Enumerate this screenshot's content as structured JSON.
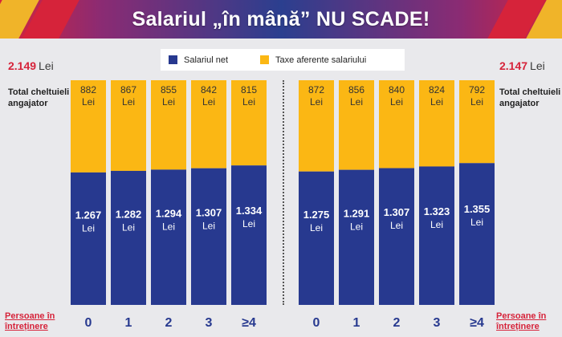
{
  "header": {
    "title": "Salariul „în mână” NU SCADE!"
  },
  "legend": {
    "net_label": "Salariul net",
    "taxes_label": "Taxe aferente salariului"
  },
  "colors": {
    "net": "#27398f",
    "taxes": "#fbb714",
    "accent": "#d6233a"
  },
  "left_panel": {
    "total_amount": "2.149",
    "total_unit": "Lei",
    "total_label": "Total cheltuieli angajator",
    "persons_label": "Persoane în întreținere"
  },
  "right_panel": {
    "total_amount": "2.147",
    "total_unit": "Lei",
    "total_label": "Total cheltuieli angajator",
    "persons_label": "Persoane în întreținere"
  },
  "chart_data": [
    {
      "type": "bar",
      "stacked": true,
      "categories": [
        "0",
        "1",
        "2",
        "3",
        "≥4"
      ],
      "series": [
        {
          "name": "Salariul net",
          "values": [
            1267,
            1282,
            1294,
            1307,
            1334
          ],
          "labels": [
            "1.267",
            "1.282",
            "1.294",
            "1.307",
            "1.334"
          ]
        },
        {
          "name": "Taxe aferente salariului",
          "values": [
            882,
            867,
            855,
            842,
            815
          ],
          "labels": [
            "882",
            "867",
            "855",
            "842",
            "815"
          ]
        }
      ],
      "total": 2149,
      "unit": "Lei"
    },
    {
      "type": "bar",
      "stacked": true,
      "categories": [
        "0",
        "1",
        "2",
        "3",
        "≥4"
      ],
      "series": [
        {
          "name": "Salariul net",
          "values": [
            1275,
            1291,
            1307,
            1323,
            1355
          ],
          "labels": [
            "1.275",
            "1.291",
            "1.307",
            "1.323",
            "1.355"
          ]
        },
        {
          "name": "Taxe aferente salariului",
          "values": [
            872,
            856,
            840,
            824,
            792
          ],
          "labels": [
            "872",
            "856",
            "840",
            "824",
            "792"
          ]
        }
      ],
      "total": 2147,
      "unit": "Lei"
    }
  ]
}
